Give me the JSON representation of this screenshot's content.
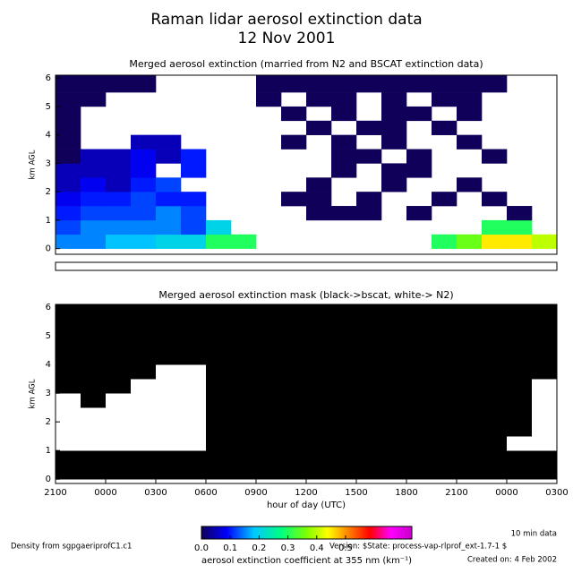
{
  "header": {
    "title": "Raman lidar aerosol extinction data",
    "subtitle": "12 Nov 2001"
  },
  "chart_data": [
    {
      "type": "heatmap",
      "title": "Merged aerosol extinction (married from N2 and BSCAT extinction data)",
      "ylabel": "km AGL",
      "x": [
        21,
        22.5,
        24,
        25.5,
        27,
        28.5,
        30,
        31.5,
        33,
        34.5,
        36,
        37.5,
        39,
        40.5,
        42,
        43.5,
        45,
        46.5,
        48,
        49.5
      ],
      "y": [
        0,
        0.5,
        1,
        1.5,
        2,
        2.5,
        3,
        3.5,
        4,
        4.5,
        5,
        5.5
      ],
      "xlim": [
        21,
        51
      ],
      "ylim": [
        -0.2,
        6.1
      ],
      "yticks": [
        0,
        1,
        2,
        3,
        4,
        5,
        6
      ],
      "values": [
        [
          0.15,
          0.15,
          0.18,
          0.18,
          0.2,
          0.2,
          0.3,
          0.3,
          null,
          null,
          null,
          null,
          null,
          null,
          null,
          0.3,
          0.35,
          0.45,
          0.45,
          0.4
        ],
        [
          0.12,
          0.15,
          0.15,
          0.15,
          0.15,
          0.12,
          0.2,
          null,
          null,
          null,
          null,
          null,
          null,
          null,
          null,
          null,
          null,
          0.3,
          0.3,
          null
        ],
        [
          0.1,
          0.12,
          0.12,
          0.12,
          0.15,
          0.12,
          null,
          null,
          null,
          null,
          0,
          0,
          0,
          null,
          0,
          null,
          null,
          null,
          0,
          null
        ],
        [
          0.08,
          0.1,
          0.1,
          0.12,
          0.1,
          0.1,
          null,
          null,
          null,
          0,
          0,
          null,
          0,
          null,
          null,
          0,
          null,
          0,
          null,
          null
        ],
        [
          0.05,
          0.08,
          0.05,
          0.1,
          0.12,
          null,
          null,
          null,
          null,
          null,
          0,
          null,
          null,
          0,
          null,
          null,
          0,
          null,
          null,
          null
        ],
        [
          0.05,
          0.05,
          0.05,
          0.08,
          null,
          0.1,
          null,
          null,
          null,
          null,
          null,
          0,
          null,
          0,
          0,
          null,
          null,
          null,
          null,
          null
        ],
        [
          0,
          0.05,
          0.05,
          0.08,
          0.05,
          0.1,
          null,
          null,
          null,
          null,
          null,
          0,
          0,
          null,
          0,
          null,
          null,
          0,
          null,
          null
        ],
        [
          0,
          null,
          null,
          0.05,
          0.05,
          null,
          null,
          null,
          null,
          0,
          null,
          0,
          null,
          0,
          null,
          null,
          0,
          null,
          null,
          null
        ],
        [
          0,
          null,
          null,
          null,
          null,
          null,
          null,
          null,
          null,
          null,
          0,
          null,
          0,
          0,
          null,
          0,
          null,
          null,
          null,
          null
        ],
        [
          0,
          null,
          null,
          null,
          null,
          null,
          null,
          null,
          null,
          0,
          null,
          0,
          null,
          0,
          0,
          null,
          0,
          null,
          null,
          null
        ],
        [
          0,
          0,
          null,
          null,
          null,
          null,
          null,
          null,
          0,
          null,
          0,
          0,
          null,
          0,
          null,
          0,
          0,
          null,
          null,
          null
        ],
        [
          0,
          0,
          0,
          0,
          null,
          null,
          null,
          null,
          0,
          0,
          0,
          0,
          0,
          0,
          0,
          0,
          0,
          0,
          null,
          null
        ]
      ],
      "colorbar": {
        "label": "aerosol extinction coefficient at 355 nm (km⁻¹)",
        "lim": [
          0,
          0.73
        ],
        "ticks": [
          {
            "value": 0,
            "label": "0.0"
          },
          0.1,
          0.2,
          0.3,
          0.4,
          0.5
        ]
      }
    },
    {
      "type": "mask",
      "title": "Merged aerosol extinction mask (black->bscat, white-> N2)",
      "ylabel": "km AGL",
      "xlabel": "hour of day (UTC)",
      "x": [
        21,
        22.5,
        24,
        25.5,
        27,
        28.5,
        30,
        31.5,
        33,
        34.5,
        36,
        37.5,
        39,
        40.5,
        42,
        43.5,
        45,
        46.5,
        48,
        49.5
      ],
      "y": [
        0,
        0.5,
        1,
        1.5,
        2,
        2.5,
        3,
        3.5,
        4,
        4.5,
        5,
        5.5
      ],
      "xlim": [
        21,
        51
      ],
      "ylim": [
        -0.15,
        6.1
      ],
      "yticks": [
        0,
        1,
        2,
        3,
        4,
        5,
        6
      ],
      "xticks": [
        {
          "value": 21,
          "label": "2100"
        },
        {
          "value": 24,
          "label": "0000"
        },
        {
          "value": 27,
          "label": "0300"
        },
        {
          "value": 30,
          "label": "0600"
        },
        {
          "value": 33,
          "label": "0900"
        },
        {
          "value": 36,
          "label": "1200"
        },
        {
          "value": 39,
          "label": "1500"
        },
        {
          "value": 42,
          "label": "1800"
        },
        {
          "value": 45,
          "label": "2100"
        },
        {
          "value": 48,
          "label": "0000"
        },
        {
          "value": 51,
          "label": "0300"
        }
      ],
      "mask_colors": [
        "#ffffff",
        "#000000"
      ],
      "values": [
        [
          1,
          1,
          1,
          1,
          1,
          1,
          1,
          1,
          1,
          1,
          1,
          1,
          1,
          1,
          1,
          1,
          1,
          1,
          1,
          1
        ],
        [
          1,
          1,
          1,
          1,
          1,
          1,
          1,
          1,
          1,
          1,
          1,
          1,
          1,
          1,
          1,
          1,
          1,
          1,
          1,
          1
        ],
        [
          0,
          0,
          0,
          0,
          0,
          0,
          1,
          1,
          1,
          1,
          1,
          1,
          1,
          1,
          1,
          1,
          1,
          1,
          0,
          0
        ],
        [
          0,
          0,
          0,
          0,
          0,
          0,
          1,
          1,
          1,
          1,
          1,
          1,
          1,
          1,
          1,
          1,
          1,
          1,
          1,
          0
        ],
        [
          0,
          0,
          0,
          0,
          0,
          0,
          1,
          1,
          1,
          1,
          1,
          1,
          1,
          1,
          1,
          1,
          1,
          1,
          1,
          0
        ],
        [
          0,
          1,
          0,
          0,
          0,
          0,
          1,
          1,
          1,
          1,
          1,
          1,
          1,
          1,
          1,
          1,
          1,
          1,
          1,
          0
        ],
        [
          1,
          1,
          1,
          0,
          0,
          0,
          1,
          1,
          1,
          1,
          1,
          1,
          1,
          1,
          1,
          1,
          1,
          1,
          1,
          0
        ],
        [
          1,
          1,
          1,
          1,
          0,
          0,
          1,
          1,
          1,
          1,
          1,
          1,
          1,
          1,
          1,
          1,
          1,
          1,
          1,
          1
        ],
        [
          1,
          1,
          1,
          1,
          1,
          1,
          1,
          1,
          1,
          1,
          1,
          1,
          1,
          1,
          1,
          1,
          1,
          1,
          1,
          1
        ],
        [
          1,
          1,
          1,
          1,
          1,
          1,
          1,
          1,
          1,
          1,
          1,
          1,
          1,
          1,
          1,
          1,
          1,
          1,
          1,
          1
        ],
        [
          1,
          1,
          1,
          1,
          1,
          1,
          1,
          1,
          1,
          1,
          1,
          1,
          1,
          1,
          1,
          1,
          1,
          1,
          1,
          1
        ],
        [
          1,
          1,
          1,
          1,
          1,
          1,
          1,
          1,
          1,
          1,
          1,
          1,
          1,
          1,
          1,
          1,
          1,
          1,
          1,
          1
        ]
      ]
    }
  ],
  "footer": {
    "resolution": "10 min data",
    "density": "Density from sgpgaeriprofC1.c1",
    "version": "Version: $State: process-vap-rlprof_ext-1.7-1 $",
    "created": "Created on:  4 Feb 2002"
  }
}
